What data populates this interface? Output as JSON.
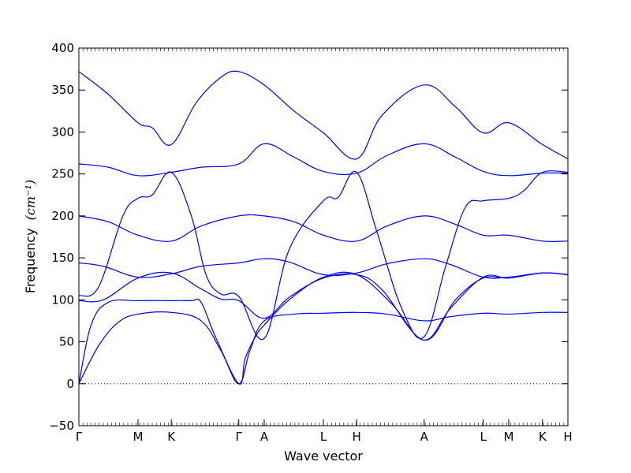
{
  "chart_data": {
    "type": "line",
    "title": "",
    "xlabel": "Wave vector",
    "ylabel": "Frequency",
    "ylabel_unit": "(cm⁻¹)",
    "ylim": [
      -50,
      400
    ],
    "yticks": [
      -50,
      0,
      50,
      100,
      150,
      200,
      250,
      300,
      350,
      400
    ],
    "xlim": [
      0,
      1
    ],
    "kpoints": [
      {
        "label": "Γ",
        "x": 0.0
      },
      {
        "label": "M",
        "x": 0.121
      },
      {
        "label": "K",
        "x": 0.189
      },
      {
        "label": "Γ",
        "x": 0.327
      },
      {
        "label": "A",
        "x": 0.379
      },
      {
        "label": "L",
        "x": 0.5
      },
      {
        "label": "H",
        "x": 0.568
      },
      {
        "label": "A",
        "x": 0.706
      },
      {
        "label": "L",
        "x": 0.827
      },
      {
        "label": "M",
        "x": 0.879
      },
      {
        "label": "K",
        "x": 0.948
      },
      {
        "label": "H",
        "x": 1.0
      }
    ],
    "zero_line": true,
    "line_color": "#0000ff",
    "series": [
      {
        "points": [
          [
            0,
            0
          ],
          [
            0.04,
            45
          ],
          [
            0.08,
            73
          ],
          [
            0.121,
            83
          ],
          [
            0.189,
            85
          ],
          [
            0.25,
            75
          ],
          [
            0.29,
            40
          ],
          [
            0.327,
            0
          ],
          [
            0.35,
            40
          ],
          [
            0.379,
            75
          ],
          [
            0.44,
            83
          ],
          [
            0.5,
            84
          ],
          [
            0.568,
            85
          ],
          [
            0.63,
            83
          ],
          [
            0.706,
            75
          ],
          [
            0.76,
            80
          ],
          [
            0.827,
            84
          ],
          [
            0.879,
            83
          ],
          [
            0.948,
            85
          ],
          [
            1.0,
            85
          ]
        ]
      },
      {
        "points": [
          [
            0,
            0
          ],
          [
            0.025,
            70
          ],
          [
            0.06,
            97
          ],
          [
            0.121,
            99
          ],
          [
            0.189,
            99
          ],
          [
            0.23,
            99
          ],
          [
            0.25,
            97
          ],
          [
            0.28,
            55
          ],
          [
            0.327,
            0
          ],
          [
            0.34,
            30
          ],
          [
            0.36,
            55
          ],
          [
            0.379,
            70
          ],
          [
            0.43,
            100
          ],
          [
            0.5,
            127
          ],
          [
            0.568,
            130
          ],
          [
            0.64,
            95
          ],
          [
            0.706,
            52
          ],
          [
            0.76,
            90
          ],
          [
            0.827,
            127
          ],
          [
            0.879,
            126
          ],
          [
            0.948,
            132
          ],
          [
            1.0,
            130
          ]
        ]
      },
      {
        "points": [
          [
            0,
            99
          ],
          [
            0.05,
            100
          ],
          [
            0.121,
            126
          ],
          [
            0.189,
            132
          ],
          [
            0.25,
            113
          ],
          [
            0.29,
            101
          ],
          [
            0.327,
            99
          ],
          [
            0.379,
            78
          ],
          [
            0.43,
            103
          ],
          [
            0.5,
            126
          ],
          [
            0.568,
            130
          ],
          [
            0.62,
            112
          ],
          [
            0.706,
            52
          ],
          [
            0.77,
            100
          ],
          [
            0.827,
            126
          ],
          [
            0.879,
            126
          ],
          [
            0.948,
            132
          ],
          [
            1.0,
            130
          ]
        ]
      },
      {
        "points": [
          [
            0,
            105
          ],
          [
            0.04,
            115
          ],
          [
            0.09,
            200
          ],
          [
            0.121,
            221
          ],
          [
            0.15,
            225
          ],
          [
            0.189,
            252
          ],
          [
            0.23,
            200
          ],
          [
            0.26,
            130
          ],
          [
            0.29,
            107
          ],
          [
            0.327,
            104
          ],
          [
            0.379,
            54
          ],
          [
            0.43,
            160
          ],
          [
            0.5,
            218
          ],
          [
            0.53,
            222
          ],
          [
            0.568,
            252
          ],
          [
            0.61,
            180
          ],
          [
            0.66,
            90
          ],
          [
            0.706,
            56
          ],
          [
            0.75,
            140
          ],
          [
            0.79,
            210
          ],
          [
            0.827,
            218
          ],
          [
            0.879,
            221
          ],
          [
            0.91,
            230
          ],
          [
            0.948,
            252
          ],
          [
            1.0,
            252
          ]
        ]
      },
      {
        "points": [
          [
            0,
            144
          ],
          [
            0.05,
            140
          ],
          [
            0.121,
            127
          ],
          [
            0.189,
            131
          ],
          [
            0.25,
            140
          ],
          [
            0.327,
            144
          ],
          [
            0.379,
            149
          ],
          [
            0.43,
            145
          ],
          [
            0.5,
            130
          ],
          [
            0.568,
            132
          ],
          [
            0.63,
            143
          ],
          [
            0.706,
            149
          ],
          [
            0.76,
            142
          ],
          [
            0.827,
            127
          ],
          [
            0.879,
            127
          ],
          [
            0.948,
            132
          ],
          [
            1.0,
            130
          ]
        ]
      },
      {
        "points": [
          [
            0,
            200
          ],
          [
            0.06,
            193
          ],
          [
            0.121,
            177
          ],
          [
            0.189,
            170
          ],
          [
            0.25,
            188
          ],
          [
            0.327,
            200
          ],
          [
            0.379,
            200
          ],
          [
            0.44,
            193
          ],
          [
            0.5,
            177
          ],
          [
            0.568,
            170
          ],
          [
            0.63,
            188
          ],
          [
            0.706,
            200
          ],
          [
            0.77,
            190
          ],
          [
            0.827,
            177
          ],
          [
            0.879,
            177
          ],
          [
            0.948,
            170
          ],
          [
            1.0,
            170
          ]
        ]
      },
      {
        "points": [
          [
            0,
            262
          ],
          [
            0.06,
            258
          ],
          [
            0.121,
            248
          ],
          [
            0.189,
            252
          ],
          [
            0.25,
            258
          ],
          [
            0.327,
            262
          ],
          [
            0.379,
            286
          ],
          [
            0.44,
            270
          ],
          [
            0.5,
            253
          ],
          [
            0.568,
            251
          ],
          [
            0.63,
            272
          ],
          [
            0.706,
            286
          ],
          [
            0.77,
            270
          ],
          [
            0.827,
            253
          ],
          [
            0.879,
            248
          ],
          [
            0.948,
            251
          ],
          [
            1.0,
            251
          ]
        ]
      },
      {
        "points": [
          [
            0,
            372
          ],
          [
            0.06,
            345
          ],
          [
            0.121,
            311
          ],
          [
            0.15,
            305
          ],
          [
            0.189,
            285
          ],
          [
            0.24,
            335
          ],
          [
            0.29,
            365
          ],
          [
            0.327,
            372
          ],
          [
            0.379,
            356
          ],
          [
            0.44,
            325
          ],
          [
            0.5,
            299
          ],
          [
            0.568,
            268
          ],
          [
            0.62,
            320
          ],
          [
            0.706,
            356
          ],
          [
            0.77,
            330
          ],
          [
            0.827,
            299
          ],
          [
            0.879,
            311
          ],
          [
            0.948,
            285
          ],
          [
            1.0,
            268
          ]
        ]
      }
    ]
  }
}
